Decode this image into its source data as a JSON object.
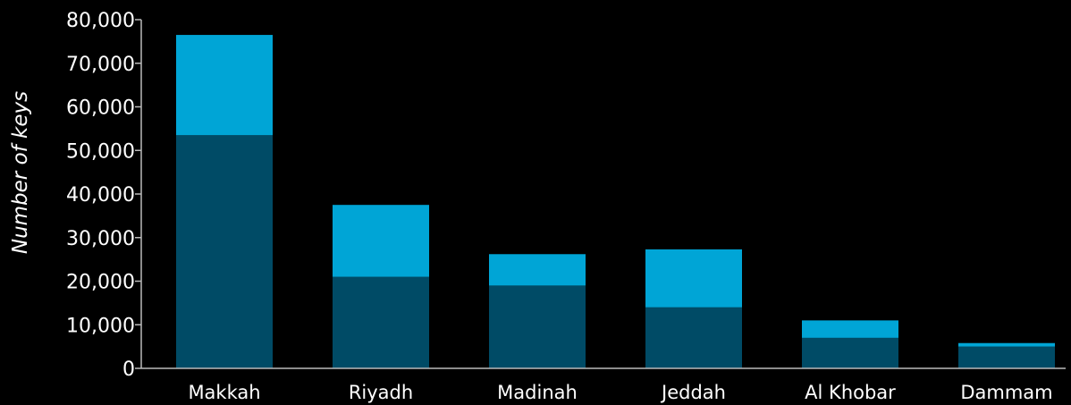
{
  "chart_data": {
    "type": "bar",
    "stacked": true,
    "title": "",
    "xlabel": "",
    "ylabel": "Number of keys",
    "ylim": [
      0,
      80000
    ],
    "y_ticks": [
      0,
      10000,
      20000,
      30000,
      40000,
      50000,
      60000,
      70000,
      80000
    ],
    "y_tick_labels": [
      "0",
      "10,000",
      "20,000",
      "30,000",
      "40,000",
      "50,000",
      "60,000",
      "70,000",
      "80,000"
    ],
    "categories": [
      "Makkah",
      "Riyadh",
      "Madinah",
      "Jeddah",
      "Al Khobar",
      "Dammam"
    ],
    "series": [
      {
        "values": [
          53500,
          21000,
          19000,
          14000,
          7000,
          5000
        ],
        "color": "#004b66"
      },
      {
        "values": [
          23000,
          16500,
          7200,
          13300,
          4000,
          800
        ],
        "color": "#00a5d6"
      }
    ],
    "grid": false,
    "legend": "none",
    "colors": {
      "background": "#000000",
      "text": "#ffffff",
      "axis": "#bbbbbb"
    }
  }
}
